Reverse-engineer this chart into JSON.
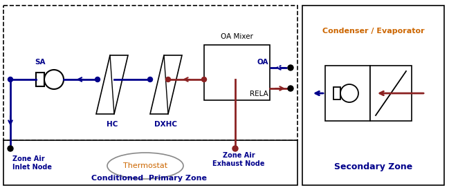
{
  "fig_width": 6.49,
  "fig_height": 2.75,
  "dpi": 100,
  "blue": "#00008B",
  "dark_red": "#8B2222",
  "orange": "#CC6600",
  "black": "#000000",
  "labels": {
    "SA": "SA",
    "HC": "HC",
    "DXHC": "DXHC",
    "OA_Mixer": "OA Mixer",
    "OA": "OA",
    "RELA": "RELA",
    "Zone_Air_Inlet": "Zone Air\nInlet Node",
    "Zone_Air_Exhaust": "Zone Air\nExhaust Node",
    "Thermostat": "Thermostat",
    "Conditioned_Primary": "Conditioned  Primary Zone",
    "Condenser_Evaporator": "Condenser / Evaporator",
    "Secondary_Zone": "Secondary Zone"
  }
}
